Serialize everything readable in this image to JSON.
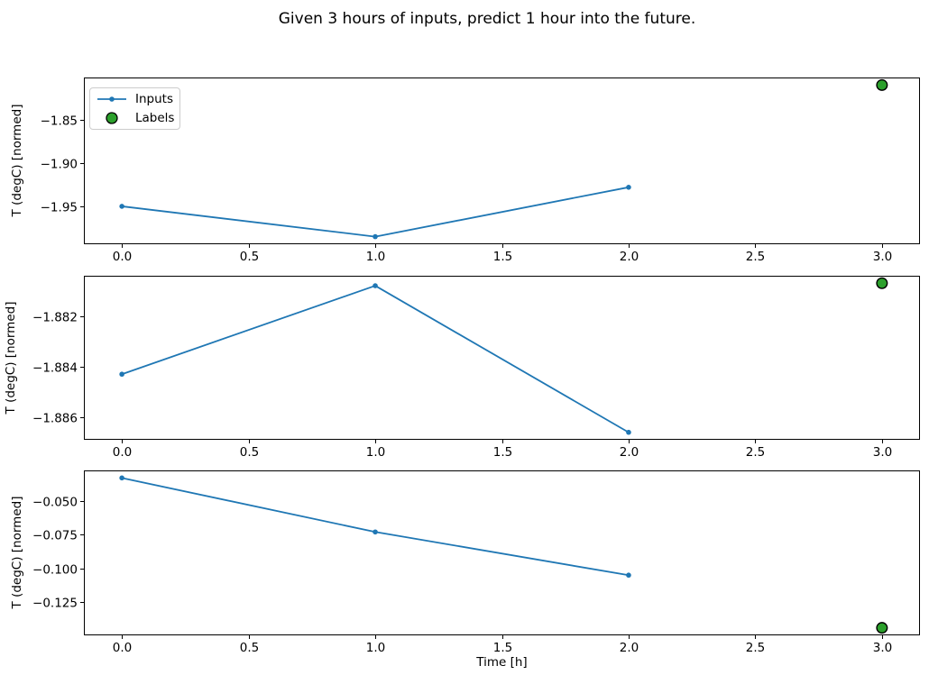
{
  "figure": {
    "title": "Given 3 hours of inputs, predict 1 hour into the future.",
    "xlabel": "Time [h]"
  },
  "legend": {
    "position": "upper left",
    "items": [
      {
        "label": "Inputs",
        "marker": "line-with-dot",
        "color": "#1f77b4"
      },
      {
        "label": "Labels",
        "marker": "circle",
        "color": "#2ca02c"
      }
    ]
  },
  "colors": {
    "inputs_line": "#1f77b4",
    "labels_fill": "#2ca02c",
    "labels_edge": "#000000",
    "axes": "#000000",
    "background": "#ffffff"
  },
  "chart_data": [
    {
      "type": "line",
      "ylabel": "T (degC) [normed]",
      "series": [
        {
          "name": "Inputs",
          "x": [
            0.0,
            1.0,
            2.0
          ],
          "y": [
            -1.95,
            -1.985,
            -1.928
          ]
        },
        {
          "name": "Labels",
          "x": [
            3.0
          ],
          "y": [
            -1.81
          ]
        }
      ],
      "xlim": [
        -0.15,
        3.15
      ],
      "xticks": [
        0.0,
        0.5,
        1.0,
        1.5,
        2.0,
        2.5,
        3.0
      ],
      "xtick_labels": [
        "0.0",
        "0.5",
        "1.0",
        "1.5",
        "2.0",
        "2.5",
        "3.0"
      ],
      "yticks": [
        -1.85,
        -1.9,
        -1.95
      ],
      "ytick_labels": [
        "−1.85",
        "−1.90",
        "−1.95"
      ],
      "grid": false,
      "legend_visible": true
    },
    {
      "type": "line",
      "ylabel": "T (degC) [normed]",
      "series": [
        {
          "name": "Inputs",
          "x": [
            0.0,
            1.0,
            2.0
          ],
          "y": [
            -1.8843,
            -1.8808,
            -1.8866
          ]
        },
        {
          "name": "Labels",
          "x": [
            3.0
          ],
          "y": [
            -1.8807
          ]
        }
      ],
      "xlim": [
        -0.15,
        3.15
      ],
      "xticks": [
        0.0,
        0.5,
        1.0,
        1.5,
        2.0,
        2.5,
        3.0
      ],
      "xtick_labels": [
        "0.0",
        "0.5",
        "1.0",
        "1.5",
        "2.0",
        "2.5",
        "3.0"
      ],
      "yticks": [
        -1.882,
        -1.884,
        -1.886
      ],
      "ytick_labels": [
        "−1.882",
        "−1.884",
        "−1.886"
      ],
      "grid": false,
      "legend_visible": false
    },
    {
      "type": "line",
      "ylabel": "T (degC) [normed]",
      "series": [
        {
          "name": "Inputs",
          "x": [
            0.0,
            1.0,
            2.0
          ],
          "y": [
            -0.033,
            -0.073,
            -0.105
          ]
        },
        {
          "name": "Labels",
          "x": [
            3.0
          ],
          "y": [
            -0.144
          ]
        }
      ],
      "xlim": [
        -0.15,
        3.15
      ],
      "xticks": [
        0.0,
        0.5,
        1.0,
        1.5,
        2.0,
        2.5,
        3.0
      ],
      "xtick_labels": [
        "0.0",
        "0.5",
        "1.0",
        "1.5",
        "2.0",
        "2.5",
        "3.0"
      ],
      "yticks": [
        -0.05,
        -0.075,
        -0.1,
        -0.125
      ],
      "ytick_labels": [
        "−0.050",
        "−0.075",
        "−0.100",
        "−0.125"
      ],
      "grid": false,
      "legend_visible": false
    }
  ]
}
